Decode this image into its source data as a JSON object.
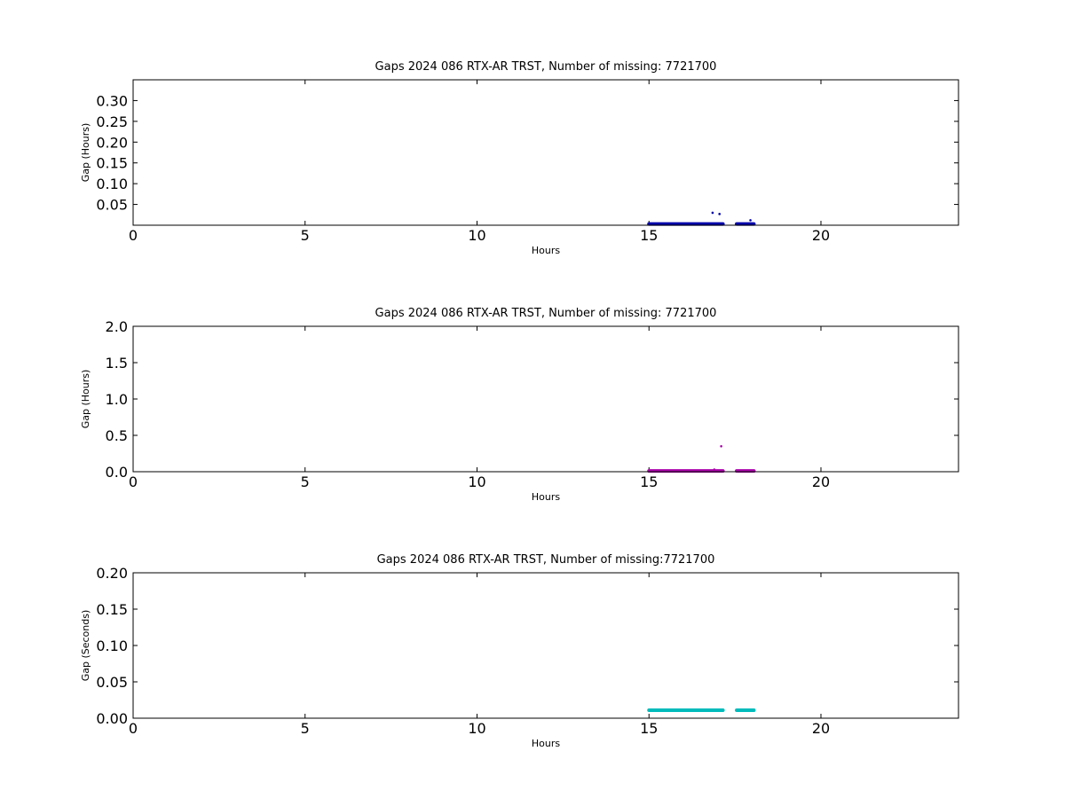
{
  "chart_data": [
    {
      "type": "scatter",
      "title": "Gaps 2024 086 RTX-AR  TRST, Number of missing: 7721700",
      "xlabel": "Hours",
      "ylabel": "Gap (Hours)",
      "xlim": [
        0,
        24
      ],
      "ylim": [
        0,
        0.35
      ],
      "xticks": [
        "0",
        "5",
        "10",
        "15",
        "20"
      ],
      "yticks": [
        "0.05",
        "0.10",
        "0.15",
        "0.20",
        "0.25",
        "0.30"
      ],
      "grid": false,
      "color": "#0000aa",
      "series": [
        {
          "x": [
            15.0,
            15.5,
            16.0,
            16.5,
            17.0,
            17.15,
            17.55,
            17.8,
            18.05,
            16.85,
            17.05,
            17.95
          ],
          "y": [
            0.003,
            0.003,
            0.003,
            0.003,
            0.003,
            0.003,
            0.003,
            0.003,
            0.003,
            0.03,
            0.027,
            0.012
          ],
          "segments": [
            [
              15.0,
              17.15,
              0.003
            ],
            [
              17.55,
              18.05,
              0.003
            ]
          ]
        }
      ]
    },
    {
      "type": "scatter",
      "title": "Gaps 2024 086 RTX-AR  TRST, Number of missing: 7721700",
      "xlabel": "Hours",
      "ylabel": "Gap (Hours)",
      "xlim": [
        0,
        24
      ],
      "ylim": [
        0,
        2.0
      ],
      "xticks": [
        "0",
        "5",
        "10",
        "15",
        "20"
      ],
      "yticks": [
        "0.0",
        "0.5",
        "1.0",
        "1.5",
        "2.0"
      ],
      "grid": false,
      "color": "#aa00aa",
      "series": [
        {
          "x": [
            15.0,
            15.5,
            16.0,
            16.5,
            17.0,
            17.15,
            17.55,
            17.8,
            18.05,
            16.9,
            17.1
          ],
          "y": [
            0.01,
            0.01,
            0.01,
            0.01,
            0.01,
            0.01,
            0.01,
            0.01,
            0.01,
            0.03,
            0.35
          ],
          "segments": [
            [
              15.0,
              17.15,
              0.01
            ],
            [
              17.55,
              18.05,
              0.01
            ]
          ]
        }
      ]
    },
    {
      "type": "scatter",
      "title": "Gaps 2024 086 RTX-AR  TRST, Number of missing:7721700",
      "xlabel": "Hours",
      "ylabel": "Gap (Seconds)",
      "xlim": [
        0,
        24
      ],
      "ylim": [
        0,
        0.2
      ],
      "xticks": [
        "0",
        "5",
        "10",
        "15",
        "20"
      ],
      "yticks": [
        "0.00",
        "0.05",
        "0.10",
        "0.15",
        "0.20"
      ],
      "grid": false,
      "color": "#00bbbb",
      "series": [
        {
          "x": [
            15.0,
            15.5,
            16.0,
            16.5,
            17.0,
            17.15,
            17.55,
            17.8,
            18.05
          ],
          "y": [
            0.011,
            0.011,
            0.011,
            0.011,
            0.011,
            0.011,
            0.011,
            0.011,
            0.011
          ],
          "segments": [
            [
              15.0,
              17.15,
              0.011
            ],
            [
              17.55,
              18.05,
              0.011
            ]
          ]
        }
      ]
    }
  ]
}
